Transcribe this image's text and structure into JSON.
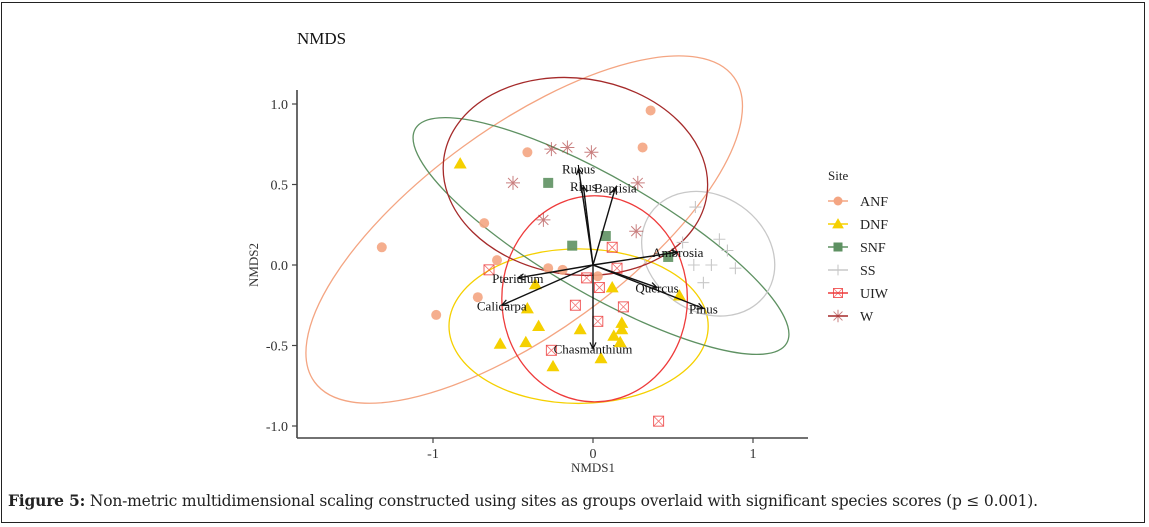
{
  "caption": {
    "label": "Figure 5:",
    "text": " Non-metric multidimensional scaling constructed using sites as groups overlaid with significant species scores (p ≤ 0.001)."
  },
  "chart_data": {
    "type": "scatter",
    "title": "NMDS",
    "xlabel": "NMDS1",
    "ylabel": "NMDS2",
    "xlim": [
      -1.85,
      1.35
    ],
    "ylim": [
      -1.07,
      1.15
    ],
    "xticks": [
      -1,
      0,
      1
    ],
    "xtick_labels": [
      "-1",
      "0",
      "1"
    ],
    "yticks": [
      -1.0,
      -0.5,
      0.0,
      0.5,
      1.0
    ],
    "ytick_labels": [
      "-1.0",
      "-0.5",
      "0.0",
      "0.5",
      "1.0"
    ],
    "grid": false,
    "legend": {
      "title": "Site",
      "position": "right"
    },
    "series": [
      {
        "name": "ANF",
        "color": "#F4A582",
        "marker": "circle",
        "points": [
          [
            0.36,
            0.96
          ],
          [
            0.31,
            0.73
          ],
          [
            -0.41,
            0.7
          ],
          [
            -0.68,
            0.26
          ],
          [
            -1.32,
            0.11
          ],
          [
            -0.6,
            0.03
          ],
          [
            -0.28,
            -0.02
          ],
          [
            -0.19,
            -0.03
          ],
          [
            0.03,
            -0.07
          ],
          [
            -0.72,
            -0.2
          ],
          [
            -0.98,
            -0.31
          ]
        ],
        "ellipse": {
          "center": [
            -0.43,
            0.22
          ],
          "semi_axes": [
            1.62,
            0.64
          ],
          "angle_deg": 36
        }
      },
      {
        "name": "DNF",
        "color": "#F5D000",
        "marker": "triangle",
        "points": [
          [
            -0.83,
            0.63
          ],
          [
            -0.36,
            -0.12
          ],
          [
            0.12,
            -0.14
          ],
          [
            0.54,
            -0.19
          ],
          [
            -0.41,
            -0.27
          ],
          [
            -0.34,
            -0.38
          ],
          [
            -0.08,
            -0.4
          ],
          [
            0.18,
            -0.36
          ],
          [
            0.18,
            -0.4
          ],
          [
            0.13,
            -0.44
          ],
          [
            0.17,
            -0.48
          ],
          [
            -0.58,
            -0.49
          ],
          [
            -0.42,
            -0.48
          ],
          [
            0.05,
            -0.58
          ],
          [
            -0.25,
            -0.63
          ]
        ],
        "ellipse": {
          "center": [
            -0.09,
            -0.38
          ],
          "semi_axes": [
            0.81,
            0.48
          ],
          "angle_deg": 0
        }
      },
      {
        "name": "SNF",
        "color": "#5E9162",
        "marker": "square",
        "points": [
          [
            -0.28,
            0.51
          ],
          [
            -0.13,
            0.12
          ],
          [
            0.08,
            0.18
          ],
          [
            0.47,
            0.05
          ]
        ],
        "ellipse": {
          "center": [
            0.05,
            0.18
          ],
          "semi_axes": [
            1.34,
            0.36
          ],
          "angle_deg": -30
        }
      },
      {
        "name": "SS",
        "color": "#C8C8C8",
        "marker": "plus",
        "points": [
          [
            0.64,
            0.36
          ],
          [
            0.56,
            0.14
          ],
          [
            0.79,
            0.16
          ],
          [
            0.84,
            0.09
          ],
          [
            0.74,
            0.0
          ],
          [
            0.89,
            -0.02
          ],
          [
            0.69,
            -0.11
          ],
          [
            0.63,
            0.0
          ]
        ],
        "ellipse": {
          "center": [
            0.72,
            0.07
          ],
          "semi_axes": [
            0.44,
            0.36
          ],
          "angle_deg": -35
        }
      },
      {
        "name": "UIW",
        "color": "#EE3B3B",
        "marker": "square-x",
        "points": [
          [
            0.12,
            0.11
          ],
          [
            -0.65,
            -0.03
          ],
          [
            0.15,
            -0.02
          ],
          [
            -0.04,
            -0.08
          ],
          [
            0.04,
            -0.14
          ],
          [
            -0.11,
            -0.25
          ],
          [
            0.19,
            -0.26
          ],
          [
            0.03,
            -0.35
          ],
          [
            -0.26,
            -0.53
          ],
          [
            0.41,
            -0.97
          ]
        ],
        "ellipse": {
          "center": [
            0.01,
            -0.21
          ],
          "semi_axes": [
            0.58,
            0.64
          ],
          "angle_deg": 0
        }
      },
      {
        "name": "W",
        "color": "#A52A2A",
        "marker": "asterisk",
        "points": [
          [
            -0.26,
            0.72
          ],
          [
            -0.16,
            0.73
          ],
          [
            -0.01,
            0.7
          ],
          [
            -0.5,
            0.51
          ],
          [
            0.28,
            0.51
          ],
          [
            -0.31,
            0.28
          ],
          [
            0.27,
            0.21
          ]
        ],
        "ellipse": {
          "center": [
            -0.11,
            0.55
          ],
          "semi_axes": [
            0.83,
            0.61
          ],
          "angle_deg": -8
        }
      }
    ],
    "vectors": [
      {
        "label": "Rubus",
        "x": -0.09,
        "y": 0.6
      },
      {
        "label": "Rhus",
        "x": -0.06,
        "y": 0.49
      },
      {
        "label": "Baptisia",
        "x": 0.14,
        "y": 0.48
      },
      {
        "label": "Ambrosia",
        "x": 0.53,
        "y": 0.08
      },
      {
        "label": "Pteridium",
        "x": -0.47,
        "y": -0.08
      },
      {
        "label": "Calicarpa",
        "x": -0.57,
        "y": -0.25
      },
      {
        "label": "Quercus",
        "x": 0.4,
        "y": -0.14
      },
      {
        "label": "Pinus",
        "x": 0.69,
        "y": -0.27
      },
      {
        "label": "Chasmanthium",
        "x": 0.0,
        "y": -0.52
      }
    ]
  }
}
